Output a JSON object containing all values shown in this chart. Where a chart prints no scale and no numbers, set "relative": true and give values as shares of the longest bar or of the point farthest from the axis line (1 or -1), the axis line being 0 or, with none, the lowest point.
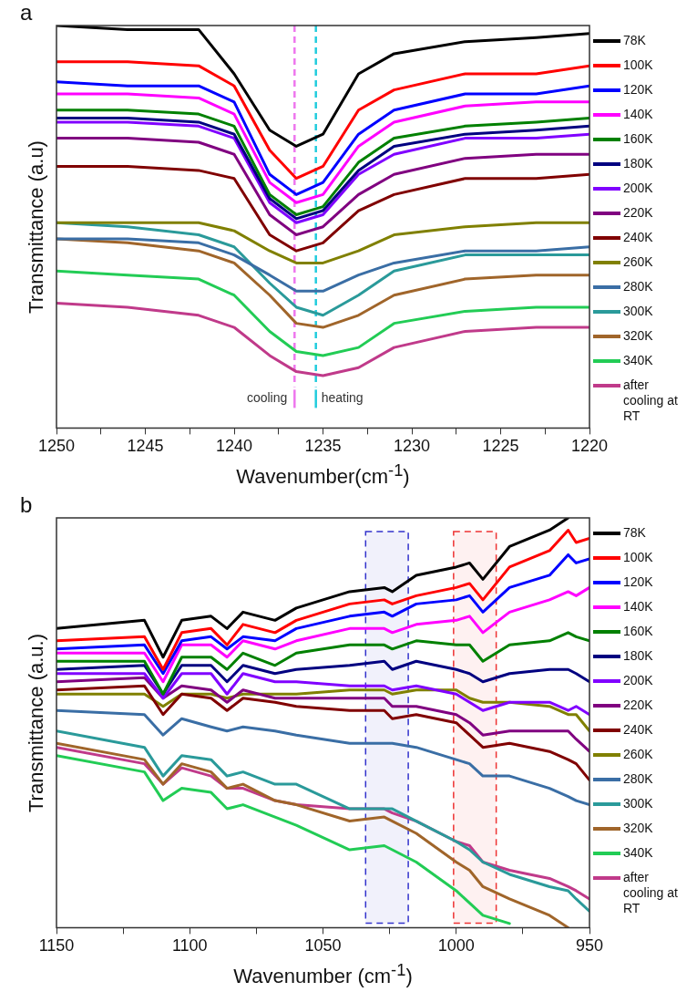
{
  "chart_data": [
    {
      "type": "line",
      "title": "a",
      "xlabel": "Wavenumber(cm$^{-1}$)",
      "ylabel": "Transmittance (a.u)",
      "relative": true,
      "marker": "none",
      "legend": "right",
      "x": [
        1250,
        1246,
        1242,
        1240,
        1238,
        1236.5,
        1235,
        1233,
        1231,
        1227,
        1223,
        1220
      ],
      "xlim": [
        1250,
        1220
      ],
      "xticks": [
        1250,
        {
          "value": 1247.5,
          "label": null
        },
        1245,
        {
          "value": 1242.5,
          "label": null
        },
        1240,
        {
          "value": 1237.5,
          "label": null
        },
        1235,
        {
          "value": 1232.5,
          "label": null
        },
        1230,
        {
          "value": 1227.5,
          "label": null
        },
        1225,
        {
          "value": 1222.5,
          "label": null
        },
        1220
      ],
      "ref_lines": [
        {
          "axis": "x",
          "value": 1236.6,
          "label": "cooling",
          "color": "#ee77ee",
          "line_style": "dashed"
        },
        {
          "axis": "x",
          "value": 1235.4,
          "label": "heating",
          "color": "#22ccdd",
          "line_style": "dashed"
        }
      ],
      "series": [
        {
          "name": "78K",
          "color": "#000000",
          "values": [
            1.0,
            0.99,
            0.99,
            0.88,
            0.74,
            0.7,
            0.73,
            0.88,
            0.93,
            0.96,
            0.97,
            0.98
          ]
        },
        {
          "name": "100K",
          "color": "#ff0000",
          "values": [
            0.91,
            0.91,
            0.9,
            0.85,
            0.69,
            0.62,
            0.65,
            0.79,
            0.84,
            0.88,
            0.88,
            0.9
          ]
        },
        {
          "name": "120K",
          "color": "#0000ff",
          "values": [
            0.86,
            0.85,
            0.85,
            0.81,
            0.63,
            0.58,
            0.61,
            0.73,
            0.79,
            0.83,
            0.83,
            0.85
          ]
        },
        {
          "name": "140K",
          "color": "#ff00ff",
          "values": [
            0.83,
            0.83,
            0.82,
            0.78,
            0.61,
            0.56,
            0.58,
            0.7,
            0.76,
            0.8,
            0.81,
            0.81
          ]
        },
        {
          "name": "160K",
          "color": "#008000",
          "values": [
            0.79,
            0.79,
            0.78,
            0.75,
            0.58,
            0.53,
            0.55,
            0.66,
            0.72,
            0.75,
            0.76,
            0.77
          ]
        },
        {
          "name": "180K",
          "color": "#000080",
          "values": [
            0.77,
            0.77,
            0.76,
            0.73,
            0.57,
            0.52,
            0.54,
            0.64,
            0.7,
            0.73,
            0.74,
            0.75
          ]
        },
        {
          "name": "200K",
          "color": "#8000ff",
          "values": [
            0.76,
            0.76,
            0.75,
            0.72,
            0.56,
            0.51,
            0.53,
            0.63,
            0.68,
            0.72,
            0.72,
            0.73
          ]
        },
        {
          "name": "220K",
          "color": "#800080",
          "values": [
            0.72,
            0.72,
            0.71,
            0.68,
            0.53,
            0.48,
            0.5,
            0.58,
            0.63,
            0.67,
            0.68,
            0.68
          ]
        },
        {
          "name": "240K",
          "color": "#800000",
          "values": [
            0.65,
            0.65,
            0.64,
            0.62,
            0.48,
            0.44,
            0.46,
            0.54,
            0.58,
            0.62,
            0.62,
            0.63
          ]
        },
        {
          "name": "260K",
          "color": "#808000",
          "values": [
            0.51,
            0.51,
            0.51,
            0.49,
            0.44,
            0.41,
            0.41,
            0.44,
            0.48,
            0.5,
            0.51,
            0.51
          ]
        },
        {
          "name": "280K",
          "color": "#3a6ea5",
          "values": [
            0.47,
            0.47,
            0.46,
            0.43,
            0.38,
            0.34,
            0.34,
            0.38,
            0.41,
            0.44,
            0.44,
            0.45
          ]
        },
        {
          "name": "300K",
          "color": "#2a9a9a",
          "values": [
            0.51,
            0.5,
            0.48,
            0.45,
            0.36,
            0.3,
            0.28,
            0.33,
            0.39,
            0.43,
            0.43,
            0.43
          ]
        },
        {
          "name": "320K",
          "color": "#a0652a",
          "values": [
            0.47,
            0.46,
            0.44,
            0.41,
            0.33,
            0.26,
            0.25,
            0.28,
            0.33,
            0.37,
            0.38,
            0.38
          ]
        },
        {
          "name": "340K",
          "color": "#22cc55",
          "values": [
            0.39,
            0.38,
            0.37,
            0.33,
            0.24,
            0.19,
            0.18,
            0.2,
            0.26,
            0.29,
            0.3,
            0.3
          ]
        },
        {
          "name": "after cooling at RT",
          "color": "#c03a8a",
          "values": [
            0.31,
            0.3,
            0.28,
            0.25,
            0.18,
            0.14,
            0.13,
            0.15,
            0.2,
            0.24,
            0.25,
            0.25
          ]
        }
      ]
    },
    {
      "type": "line",
      "title": "b",
      "xlabel": "Wavenumber (cm$^{-1}$)",
      "ylabel": "Transmittance (a.u.)",
      "relative": true,
      "marker": "none",
      "legend": "right",
      "x": [
        1150,
        1117,
        1110,
        1103,
        1092,
        1086,
        1080,
        1068,
        1060,
        1040,
        1027,
        1024,
        1015,
        1000,
        995,
        990,
        980,
        965,
        958,
        955,
        950
      ],
      "xlim": [
        1150,
        950
      ],
      "xticks": [
        1150,
        {
          "value": 1125,
          "label": null
        },
        1100,
        {
          "value": 1075,
          "label": null
        },
        1050,
        {
          "value": 1025,
          "label": null
        },
        1000,
        {
          "value": 975,
          "label": null
        },
        950
      ],
      "bands": [
        {
          "axis": "x",
          "from": 1034,
          "to": 1018,
          "color": "#3333cc"
        },
        {
          "axis": "x",
          "from": 1001,
          "to": 985,
          "color": "#ee3333"
        }
      ],
      "series": [
        {
          "name": "78K",
          "color": "#000000",
          "values": [
            0.73,
            0.75,
            0.66,
            0.75,
            0.76,
            0.73,
            0.77,
            0.75,
            0.78,
            0.82,
            0.83,
            0.82,
            0.86,
            0.88,
            0.89,
            0.85,
            0.93,
            0.97,
            1.0,
            null,
            null
          ]
        },
        {
          "name": "100K",
          "color": "#ff0000",
          "values": [
            0.7,
            0.71,
            0.63,
            0.72,
            0.73,
            0.69,
            0.74,
            0.72,
            0.75,
            0.79,
            0.8,
            0.79,
            0.81,
            0.83,
            0.84,
            0.8,
            0.88,
            0.92,
            0.97,
            0.94,
            0.95
          ]
        },
        {
          "name": "120K",
          "color": "#0000ff",
          "values": [
            0.68,
            0.69,
            0.62,
            0.7,
            0.71,
            0.68,
            0.71,
            0.7,
            0.73,
            0.76,
            0.77,
            0.76,
            0.79,
            0.8,
            0.81,
            0.77,
            0.83,
            0.86,
            0.91,
            0.89,
            0.9
          ]
        },
        {
          "name": "140K",
          "color": "#ff00ff",
          "values": [
            0.67,
            0.67,
            0.6,
            0.69,
            0.69,
            0.66,
            0.7,
            0.68,
            0.7,
            0.73,
            0.73,
            0.72,
            0.74,
            0.75,
            0.76,
            0.72,
            0.77,
            0.8,
            0.82,
            0.81,
            0.83
          ]
        },
        {
          "name": "160K",
          "color": "#008000",
          "values": [
            0.65,
            0.65,
            0.57,
            0.66,
            0.66,
            0.63,
            0.67,
            0.64,
            0.67,
            0.69,
            0.69,
            0.68,
            0.7,
            0.69,
            0.69,
            0.65,
            0.69,
            0.7,
            0.72,
            0.71,
            0.7
          ]
        },
        {
          "name": "180K",
          "color": "#000080",
          "values": [
            0.63,
            0.64,
            0.57,
            0.64,
            0.64,
            0.6,
            0.64,
            0.62,
            0.63,
            0.64,
            0.65,
            0.63,
            0.65,
            0.63,
            0.62,
            0.6,
            0.62,
            0.63,
            0.63,
            0.62,
            0.6
          ]
        },
        {
          "name": "200K",
          "color": "#8000ff",
          "values": [
            0.62,
            0.62,
            0.56,
            0.62,
            0.62,
            0.57,
            0.62,
            0.6,
            0.6,
            0.59,
            0.59,
            0.58,
            0.59,
            0.57,
            0.55,
            0.53,
            0.55,
            0.55,
            0.53,
            0.54,
            0.52
          ]
        },
        {
          "name": "220K",
          "color": "#800080",
          "values": [
            0.6,
            0.61,
            0.56,
            0.59,
            0.58,
            0.55,
            0.58,
            0.56,
            0.56,
            0.56,
            0.56,
            0.54,
            0.54,
            0.52,
            0.5,
            0.47,
            0.48,
            0.48,
            0.48,
            0.46,
            0.43
          ]
        },
        {
          "name": "240K",
          "color": "#800000",
          "values": [
            0.58,
            0.59,
            0.52,
            0.57,
            0.56,
            0.53,
            0.56,
            0.55,
            0.54,
            0.53,
            0.53,
            0.51,
            0.52,
            0.5,
            0.47,
            0.44,
            0.45,
            0.43,
            0.41,
            0.4,
            0.36
          ]
        },
        {
          "name": "260K",
          "color": "#808000",
          "values": [
            0.57,
            0.57,
            0.54,
            0.57,
            0.57,
            0.56,
            0.57,
            0.57,
            0.57,
            0.58,
            0.58,
            0.57,
            0.58,
            0.58,
            0.56,
            0.55,
            0.55,
            0.54,
            0.52,
            0.52,
            0.48
          ]
        },
        {
          "name": "280K",
          "color": "#3a6ea5",
          "values": [
            0.53,
            0.52,
            0.47,
            0.51,
            0.49,
            0.48,
            0.49,
            0.48,
            0.47,
            0.45,
            0.45,
            0.45,
            0.44,
            0.41,
            0.4,
            0.37,
            0.37,
            0.34,
            0.32,
            0.31,
            0.3
          ]
        },
        {
          "name": "300K",
          "color": "#2a9a9a",
          "values": [
            0.48,
            0.44,
            0.37,
            0.42,
            0.41,
            0.37,
            0.38,
            0.35,
            0.35,
            0.29,
            0.29,
            0.29,
            0.26,
            0.21,
            0.19,
            0.16,
            0.13,
            0.1,
            0.09,
            0.07,
            0.04
          ]
        },
        {
          "name": "320K",
          "color": "#a0652a",
          "values": [
            0.45,
            0.41,
            0.35,
            0.4,
            0.38,
            0.34,
            0.35,
            0.31,
            0.3,
            0.26,
            0.27,
            0.26,
            0.23,
            0.16,
            0.14,
            0.1,
            0.07,
            0.03,
            0,
            null,
            null
          ]
        },
        {
          "name": "340K",
          "color": "#22cc55",
          "values": [
            0.42,
            0.38,
            0.31,
            0.34,
            0.33,
            0.29,
            0.3,
            0.27,
            0.25,
            0.19,
            0.2,
            0.19,
            0.16,
            0.09,
            0.06,
            0.03,
            0.01,
            null,
            null,
            null,
            null
          ]
        },
        {
          "name": "after cooling at RT",
          "color": "#c03a8a",
          "values": [
            0.44,
            0.4,
            0.35,
            0.39,
            0.37,
            0.34,
            0.34,
            0.31,
            0.3,
            0.29,
            0.29,
            0.28,
            0.26,
            0.21,
            0.2,
            0.16,
            0.14,
            0.12,
            0.1,
            0.09,
            0.07
          ]
        }
      ]
    }
  ]
}
